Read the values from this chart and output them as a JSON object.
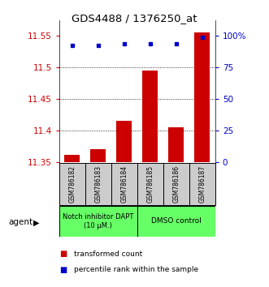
{
  "title": "GDS4488 / 1376250_at",
  "samples": [
    "GSM786182",
    "GSM786183",
    "GSM786184",
    "GSM786185",
    "GSM786186",
    "GSM786187"
  ],
  "red_values": [
    11.362,
    11.37,
    11.415,
    11.495,
    11.405,
    11.555
  ],
  "blue_values": [
    11.535,
    11.535,
    11.538,
    11.538,
    11.537,
    11.548
  ],
  "ylim": [
    11.35,
    11.575
  ],
  "yticks_left": [
    11.35,
    11.4,
    11.45,
    11.5,
    11.55
  ],
  "yticks_right": [
    0,
    25,
    50,
    75,
    100
  ],
  "yticks_right_vals": [
    11.35,
    11.4,
    11.45,
    11.5,
    11.55
  ],
  "bar_color": "#cc0000",
  "dot_color": "#0000cc",
  "bar_bottom": 11.35,
  "grid_lines": [
    11.4,
    11.45,
    11.5
  ],
  "group1_label": "Notch inhibitor DAPT\n(10 μM.)",
  "group2_label": "DMSO control",
  "group1_indices": [
    0,
    1,
    2
  ],
  "group2_indices": [
    3,
    4,
    5
  ],
  "group_bg_color": "#66ff66",
  "sample_bg_color": "#cccccc",
  "legend_red": "transformed count",
  "legend_blue": "percentile rank within the sample",
  "agent_label": "agent",
  "ylabel_left_color": "#cc0000",
  "ylabel_right_color": "#0000cc"
}
